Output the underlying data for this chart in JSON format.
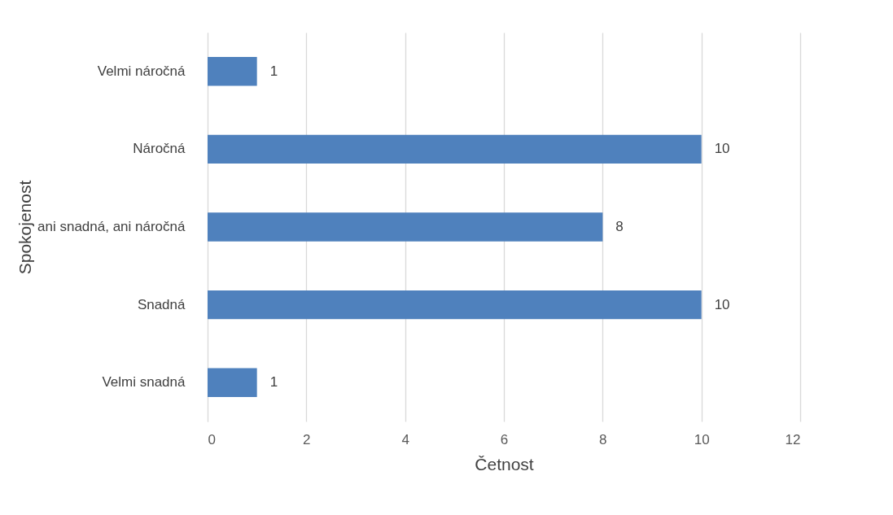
{
  "chart_data": {
    "type": "bar",
    "orientation": "horizontal",
    "xlabel": "Četnost",
    "ylabel": "Spokojenost",
    "categories": [
      "Velmi náročná",
      "Náročná",
      "ani snadná, ani náročná",
      "Snadná",
      "Velmi snadná"
    ],
    "values": [
      1,
      10,
      8,
      10,
      1
    ],
    "color": "#4f81bd",
    "xlim": [
      0,
      12
    ],
    "xticks": [
      0,
      2,
      4,
      6,
      8,
      10,
      12
    ],
    "grid": "x",
    "data_labels": true
  }
}
